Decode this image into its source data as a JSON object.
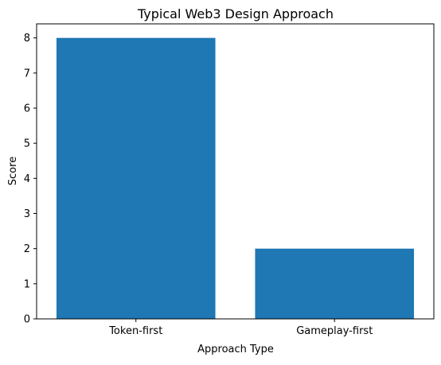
{
  "chart_data": {
    "type": "bar",
    "title": "Typical Web3 Design Approach",
    "xlabel": "Approach Type",
    "ylabel": "Score",
    "categories": [
      "Token-first",
      "Gameplay-first"
    ],
    "values": [
      8,
      2
    ],
    "ylim": [
      0,
      8.4
    ],
    "yticks": [
      0,
      1,
      2,
      3,
      4,
      5,
      6,
      7,
      8
    ],
    "grid": false,
    "bar_color": "#1f77b4"
  }
}
